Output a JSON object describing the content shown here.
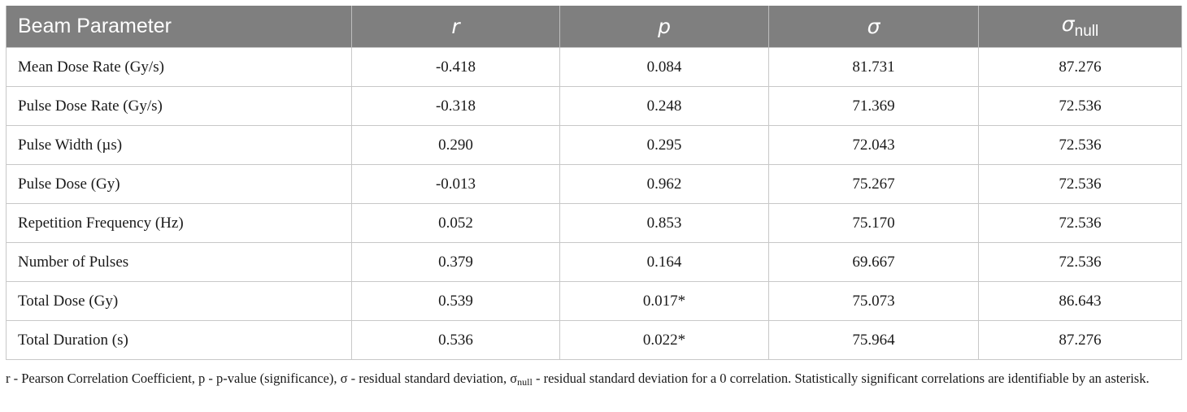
{
  "table": {
    "headers": {
      "param": "Beam Parameter",
      "r": "r",
      "p": "p",
      "sigma": "σ",
      "sigma_null_base": "σ",
      "sigma_null_sub": "null"
    },
    "rows": [
      {
        "label": "Mean Dose Rate (Gy/s)",
        "r": "-0.418",
        "p": "0.084",
        "sigma": "81.731",
        "sigma_null": "87.276"
      },
      {
        "label": "Pulse Dose Rate (Gy/s)",
        "r": "-0.318",
        "p": "0.248",
        "sigma": "71.369",
        "sigma_null": "72.536"
      },
      {
        "label": "Pulse Width (µs)",
        "r": "0.290",
        "p": "0.295",
        "sigma": "72.043",
        "sigma_null": "72.536"
      },
      {
        "label": "Pulse Dose (Gy)",
        "r": "-0.013",
        "p": "0.962",
        "sigma": "75.267",
        "sigma_null": "72.536"
      },
      {
        "label": "Repetition Frequency (Hz)",
        "r": "0.052",
        "p": "0.853",
        "sigma": "75.170",
        "sigma_null": "72.536"
      },
      {
        "label": "Number of Pulses",
        "r": "0.379",
        "p": "0.164",
        "sigma": "69.667",
        "sigma_null": "72.536"
      },
      {
        "label": "Total Dose (Gy)",
        "r": "0.539",
        "p": "0.017*",
        "sigma": "75.073",
        "sigma_null": "86.643"
      },
      {
        "label": "Total Duration (s)",
        "r": "0.536",
        "p": "0.022*",
        "sigma": "75.964",
        "sigma_null": "87.276"
      }
    ]
  },
  "footnote": {
    "part1": "r - Pearson Correlation Coefficient, p - p-value (significance), σ - residual standard deviation, σ",
    "sub": "null",
    "part2": " - residual standard deviation for a 0 correlation. Statistically significant correlations are identifiable by an asterisk."
  }
}
